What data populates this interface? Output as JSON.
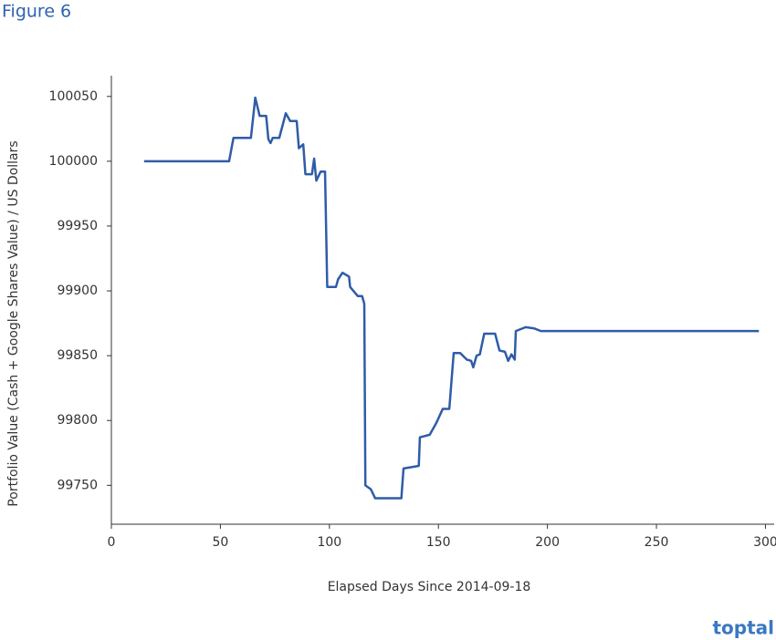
{
  "chart_data": {
    "type": "line",
    "title": "Figure 6",
    "x_label": "Elapsed Days Since 2014-09-18",
    "y_label": "Portfolio Value (Cash + Google Shares Value) / US Dollars",
    "xlim": [
      0,
      304
    ],
    "xticks": [
      0,
      50,
      100,
      150,
      200,
      250,
      300
    ],
    "ylim": [
      99720,
      100066
    ],
    "yticks": [
      99750,
      99800,
      99850,
      99900,
      99950,
      100000,
      100050
    ],
    "grid": false,
    "series": [
      {
        "name": "Portfolio Value",
        "color": "#2f5ca8",
        "x": [
          15,
          54,
          56,
          64,
          66,
          68,
          71,
          72,
          73,
          74,
          77,
          80,
          82,
          85,
          86,
          88,
          89,
          92,
          93,
          94,
          96,
          98,
          99,
          103,
          104,
          106,
          109,
          109.5,
          113,
          115,
          116,
          116.5,
          119,
          121,
          133,
          134,
          141,
          141.5,
          146,
          149,
          152,
          155,
          157,
          160,
          163,
          165,
          166,
          167.5,
          169,
          171,
          176,
          178,
          180.5,
          182,
          183.5,
          185,
          185.5,
          190,
          194,
          197,
          297
        ],
        "values": [
          100000,
          100000,
          100018,
          100018,
          100049,
          100035,
          100035,
          100017,
          100014,
          100018,
          100018,
          100037,
          100031,
          100031,
          100010,
          100013,
          99990,
          99990,
          100002,
          99985,
          99992,
          99992,
          99903,
          99903,
          99909,
          99914,
          99911,
          99903,
          99896,
          99896,
          99890,
          99750,
          99747,
          99740,
          99740,
          99763,
          99765,
          99787,
          99789,
          99798,
          99809,
          99809,
          99852,
          99852,
          99847,
          99846,
          99841,
          99850,
          99851,
          99867,
          99867,
          99854,
          99853,
          99846,
          99851,
          99847,
          99869,
          99872,
          99871,
          99869,
          99869
        ]
      }
    ]
  },
  "logo": "toptal"
}
